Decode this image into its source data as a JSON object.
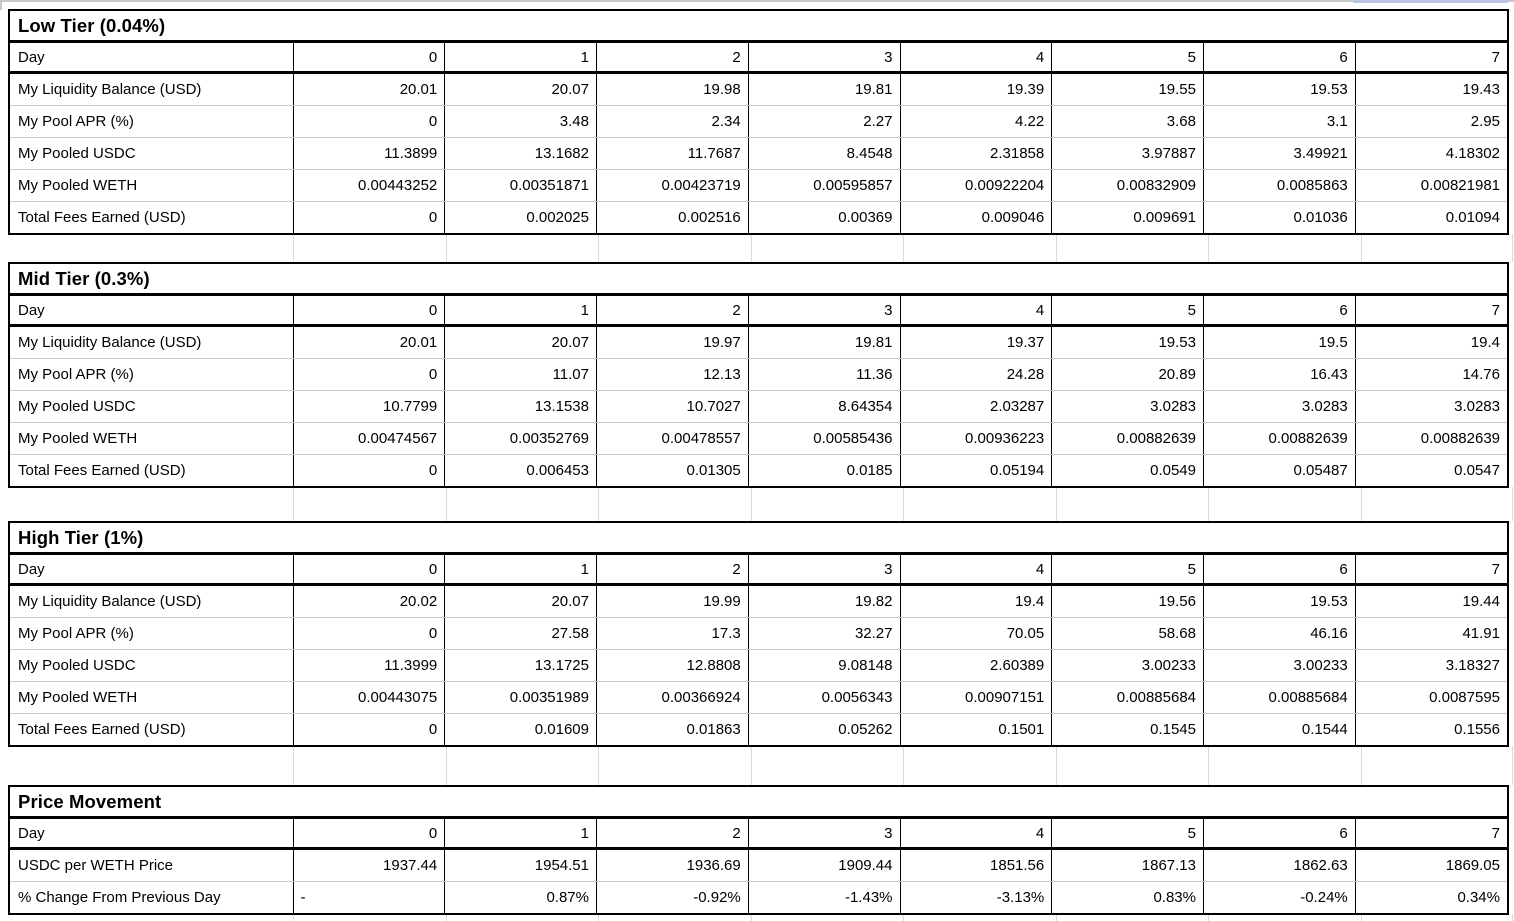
{
  "app": {
    "description_title": "Liquidity pool tier comparison spreadsheet"
  },
  "colors": {
    "table_border": "#000000",
    "grid_line": "#d9d9d9",
    "row_separator": "#cccccc",
    "selection_blue": "#b9c5e2",
    "background": "#ffffff",
    "text": "#000000"
  },
  "day_header_label": "Day",
  "days": [
    "0",
    "1",
    "2",
    "3",
    "4",
    "5",
    "6",
    "7"
  ],
  "sections": [
    {
      "title": "Low Tier (0.04%)",
      "rows": [
        {
          "label": "My Liquidity Balance (USD)",
          "values": [
            "20.01",
            "20.07",
            "19.98",
            "19.81",
            "19.39",
            "19.55",
            "19.53",
            "19.43"
          ]
        },
        {
          "label": "My Pool APR (%)",
          "values": [
            "0",
            "3.48",
            "2.34",
            "2.27",
            "4.22",
            "3.68",
            "3.1",
            "2.95"
          ]
        },
        {
          "label": "My Pooled USDC",
          "values": [
            "11.3899",
            "13.1682",
            "11.7687",
            "8.4548",
            "2.31858",
            "3.97887",
            "3.49921",
            "4.18302"
          ]
        },
        {
          "label": "My Pooled WETH",
          "values": [
            "0.00443252",
            "0.00351871",
            "0.00423719",
            "0.00595857",
            "0.00922204",
            "0.00832909",
            "0.0085863",
            "0.00821981"
          ]
        },
        {
          "label": "Total Fees Earned (USD)",
          "values": [
            "0",
            "0.002025",
            "0.002516",
            "0.00369",
            "0.009046",
            "0.009691",
            "0.01036",
            "0.01094"
          ]
        }
      ]
    },
    {
      "title": "Mid Tier (0.3%)",
      "rows": [
        {
          "label": "My Liquidity Balance (USD)",
          "values": [
            "20.01",
            "20.07",
            "19.97",
            "19.81",
            "19.37",
            "19.53",
            "19.5",
            "19.4"
          ]
        },
        {
          "label": "My Pool APR (%)",
          "values": [
            "0",
            "11.07",
            "12.13",
            "11.36",
            "24.28",
            "20.89",
            "16.43",
            "14.76"
          ]
        },
        {
          "label": "My Pooled USDC",
          "values": [
            "10.7799",
            "13.1538",
            "10.7027",
            "8.64354",
            "2.03287",
            "3.0283",
            "3.0283",
            "3.0283"
          ]
        },
        {
          "label": "My Pooled WETH",
          "values": [
            "0.00474567",
            "0.00352769",
            "0.00478557",
            "0.00585436",
            "0.00936223",
            "0.00882639",
            "0.00882639",
            "0.00882639"
          ]
        },
        {
          "label": "Total Fees Earned (USD)",
          "values": [
            "0",
            "0.006453",
            "0.01305",
            "0.0185",
            "0.05194",
            "0.0549",
            "0.05487",
            "0.0547"
          ]
        }
      ]
    },
    {
      "title": "High Tier (1%)",
      "rows": [
        {
          "label": "My Liquidity Balance (USD)",
          "values": [
            "20.02",
            "20.07",
            "19.99",
            "19.82",
            "19.4",
            "19.56",
            "19.53",
            "19.44"
          ]
        },
        {
          "label": "My Pool APR (%)",
          "values": [
            "0",
            "27.58",
            "17.3",
            "32.27",
            "70.05",
            "58.68",
            "46.16",
            "41.91"
          ]
        },
        {
          "label": "My Pooled USDC",
          "values": [
            "11.3999",
            "13.1725",
            "12.8808",
            "9.08148",
            "2.60389",
            "3.00233",
            "3.00233",
            "3.18327"
          ]
        },
        {
          "label": "My Pooled WETH",
          "values": [
            "0.00443075",
            "0.00351989",
            "0.00366924",
            "0.0056343",
            "0.00907151",
            "0.00885684",
            "0.00885684",
            "0.0087595"
          ]
        },
        {
          "label": "Total Fees Earned (USD)",
          "values": [
            "0",
            "0.01609",
            "0.01863",
            "0.05262",
            "0.1501",
            "0.1545",
            "0.1544",
            "0.1556"
          ]
        }
      ]
    },
    {
      "title": "Price Movement",
      "rows": [
        {
          "label": "USDC per WETH Price",
          "values": [
            "1937.44",
            "1954.51",
            "1936.69",
            "1909.44",
            "1851.56",
            "1867.13",
            "1862.63",
            "1869.05"
          ]
        },
        {
          "label": "% Change From Previous Day",
          "values": [
            "-",
            "0.87%",
            "-0.92%",
            "-1.43%",
            "-3.13%",
            "0.83%",
            "-0.24%",
            "0.34%"
          ]
        }
      ]
    }
  ]
}
